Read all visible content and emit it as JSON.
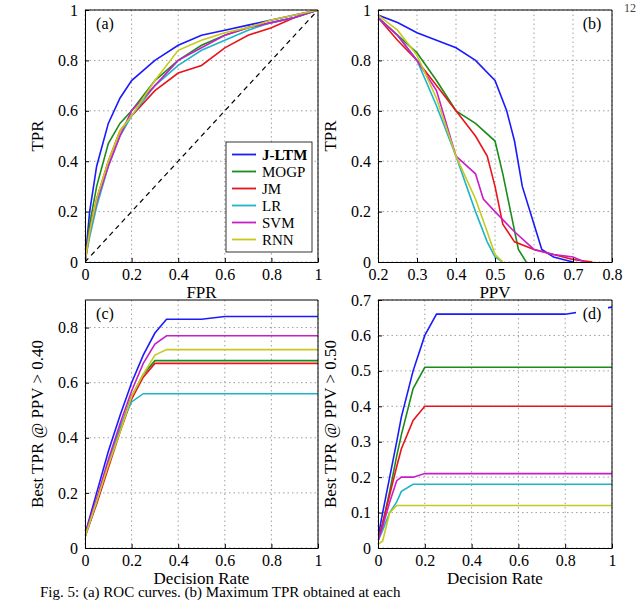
{
  "page_number": "12",
  "caption": "Fig. 5: (a) ROC curves. (b) Maximum TPR obtained at each",
  "chart_data": [
    {
      "type": "line",
      "title": "(a)",
      "x_label": "FPR",
      "y_label": "TPR",
      "xlim": [
        0,
        1
      ],
      "ylim": [
        0,
        1
      ],
      "xticks": [
        0,
        0.2,
        0.4,
        0.6,
        0.8,
        1
      ],
      "yticks": [
        0,
        0.2,
        0.4,
        0.6,
        0.8,
        1
      ],
      "grid": true,
      "legend": "lower right",
      "x": [
        0,
        0.02,
        0.05,
        0.1,
        0.15,
        0.2,
        0.3,
        0.4,
        0.5,
        0.6,
        0.7,
        0.8,
        0.9,
        1
      ],
      "series": [
        {
          "name": "J-LTM",
          "color": "#1a1aff",
          "values": [
            0,
            0.2,
            0.38,
            0.55,
            0.65,
            0.72,
            0.8,
            0.86,
            0.9,
            0.92,
            0.94,
            0.96,
            0.98,
            1
          ]
        },
        {
          "name": "MOGP",
          "color": "#1a8c1a",
          "values": [
            0,
            0.15,
            0.3,
            0.47,
            0.55,
            0.6,
            0.72,
            0.8,
            0.86,
            0.9,
            0.93,
            0.95,
            0.97,
            1
          ]
        },
        {
          "name": "JM",
          "color": "#e8141a",
          "values": [
            0,
            0.12,
            0.25,
            0.4,
            0.52,
            0.58,
            0.68,
            0.75,
            0.78,
            0.85,
            0.9,
            0.93,
            0.97,
            1
          ]
        },
        {
          "name": "LR",
          "color": "#1fb4c8",
          "values": [
            0,
            0.1,
            0.22,
            0.38,
            0.5,
            0.58,
            0.7,
            0.78,
            0.84,
            0.88,
            0.92,
            0.95,
            0.97,
            1
          ]
        },
        {
          "name": "SVM",
          "color": "#c81ec8",
          "values": [
            0,
            0.12,
            0.24,
            0.38,
            0.5,
            0.6,
            0.7,
            0.8,
            0.85,
            0.9,
            0.93,
            0.95,
            0.97,
            1
          ]
        },
        {
          "name": "RNN",
          "color": "#c8c81e",
          "values": [
            0,
            0.12,
            0.25,
            0.4,
            0.52,
            0.58,
            0.72,
            0.84,
            0.88,
            0.91,
            0.93,
            0.96,
            0.98,
            1
          ]
        },
        {
          "color": "#000000",
          "line_style": "dashed",
          "x": [
            0,
            1
          ],
          "values": [
            0,
            1
          ]
        }
      ]
    },
    {
      "type": "line",
      "title": "(b)",
      "x_label": "PPV",
      "y_label": "TPR",
      "xlim": [
        0.2,
        0.8
      ],
      "ylim": [
        0,
        1
      ],
      "xticks": [
        0.2,
        0.3,
        0.4,
        0.5,
        0.6,
        0.7,
        0.8
      ],
      "yticks": [
        0,
        0.2,
        0.4,
        0.6,
        0.8,
        1
      ],
      "grid": true,
      "series": [
        {
          "name": "J-LTM",
          "color": "#1a1aff",
          "x": [
            0.2,
            0.25,
            0.3,
            0.35,
            0.4,
            0.45,
            0.5,
            0.53,
            0.55,
            0.57,
            0.6,
            0.62,
            0.65,
            0.7
          ],
          "values": [
            0.98,
            0.95,
            0.91,
            0.88,
            0.85,
            0.8,
            0.72,
            0.6,
            0.48,
            0.3,
            0.15,
            0.05,
            0.02,
            0
          ]
        },
        {
          "name": "MOGP",
          "color": "#1a8c1a",
          "x": [
            0.2,
            0.25,
            0.3,
            0.35,
            0.4,
            0.45,
            0.5,
            0.52,
            0.54,
            0.56,
            0.58
          ],
          "values": [
            0.97,
            0.9,
            0.83,
            0.72,
            0.6,
            0.55,
            0.48,
            0.35,
            0.2,
            0.05,
            0
          ]
        },
        {
          "name": "JM",
          "color": "#e8141a",
          "x": [
            0.2,
            0.25,
            0.3,
            0.35,
            0.4,
            0.45,
            0.48,
            0.5,
            0.52,
            0.55,
            0.6,
            0.65,
            0.7,
            0.75
          ],
          "values": [
            0.97,
            0.88,
            0.8,
            0.7,
            0.6,
            0.5,
            0.42,
            0.3,
            0.15,
            0.08,
            0.05,
            0.03,
            0.01,
            0
          ]
        },
        {
          "name": "LR",
          "color": "#1fb4c8",
          "x": [
            0.2,
            0.25,
            0.3,
            0.35,
            0.4,
            0.45,
            0.48,
            0.5,
            0.52
          ],
          "values": [
            0.97,
            0.9,
            0.8,
            0.62,
            0.42,
            0.2,
            0.08,
            0.02,
            0
          ]
        },
        {
          "name": "SVM",
          "color": "#c81ec8",
          "x": [
            0.2,
            0.25,
            0.3,
            0.35,
            0.4,
            0.45,
            0.47,
            0.5,
            0.55,
            0.6,
            0.65,
            0.7,
            0.73
          ],
          "values": [
            0.97,
            0.9,
            0.8,
            0.68,
            0.42,
            0.35,
            0.25,
            0.2,
            0.12,
            0.05,
            0.03,
            0.02,
            0
          ]
        },
        {
          "name": "RNN",
          "color": "#c8c81e",
          "x": [
            0.2,
            0.25,
            0.3,
            0.35,
            0.4,
            0.45,
            0.48,
            0.5,
            0.52
          ],
          "values": [
            0.98,
            0.92,
            0.82,
            0.65,
            0.42,
            0.25,
            0.12,
            0.03,
            0
          ]
        }
      ]
    },
    {
      "type": "line",
      "title": "(c)",
      "x_label": "Decision Rate",
      "y_label": "Best TPR @ PPV > 0.40",
      "xlim": [
        0,
        1
      ],
      "ylim": [
        0,
        0.9
      ],
      "xticks": [
        0,
        0.2,
        0.4,
        0.6,
        0.8,
        1
      ],
      "yticks": [
        0,
        0.2,
        0.4,
        0.6,
        0.8
      ],
      "grid": true,
      "x": [
        0,
        0.05,
        0.1,
        0.15,
        0.2,
        0.25,
        0.3,
        0.35,
        0.4,
        0.5,
        0.6,
        0.7,
        0.8,
        0.9,
        1
      ],
      "series": [
        {
          "name": "J-LTM",
          "color": "#1a1aff",
          "values": [
            0.05,
            0.2,
            0.35,
            0.48,
            0.6,
            0.7,
            0.78,
            0.83,
            0.83,
            0.83,
            0.84,
            0.84,
            0.84,
            0.84,
            0.84
          ]
        },
        {
          "name": "MOGP",
          "color": "#1a8c1a",
          "values": [
            0.04,
            0.17,
            0.3,
            0.43,
            0.55,
            0.63,
            0.68,
            0.68,
            0.68,
            0.68,
            0.68,
            0.68,
            0.68,
            0.68,
            0.68
          ]
        },
        {
          "name": "JM",
          "color": "#e8141a",
          "values": [
            0.04,
            0.16,
            0.29,
            0.42,
            0.54,
            0.62,
            0.67,
            0.67,
            0.67,
            0.67,
            0.67,
            0.67,
            0.67,
            0.67,
            0.67
          ]
        },
        {
          "name": "LR",
          "color": "#1fb4c8",
          "values": [
            0.04,
            0.17,
            0.31,
            0.44,
            0.53,
            0.56,
            0.56,
            0.56,
            0.56,
            0.56,
            0.56,
            0.56,
            0.56,
            0.56,
            0.56
          ]
        },
        {
          "name": "SVM",
          "color": "#c81ec8",
          "values": [
            0.05,
            0.18,
            0.32,
            0.45,
            0.57,
            0.67,
            0.74,
            0.77,
            0.77,
            0.77,
            0.77,
            0.77,
            0.77,
            0.77,
            0.77
          ]
        },
        {
          "name": "RNN",
          "color": "#c8c81e",
          "values": [
            0.04,
            0.17,
            0.3,
            0.42,
            0.55,
            0.63,
            0.7,
            0.72,
            0.72,
            0.72,
            0.72,
            0.72,
            0.72,
            0.72,
            0.72
          ]
        }
      ]
    },
    {
      "type": "line",
      "title": "(d)",
      "x_label": "Decision Rate",
      "y_label": "Best TPR @ PPV > 0.50",
      "xlim": [
        0,
        1
      ],
      "ylim": [
        0,
        0.7
      ],
      "xticks": [
        0,
        0.2,
        0.4,
        0.6,
        0.8,
        1
      ],
      "yticks": [
        0,
        0.1,
        0.2,
        0.3,
        0.4,
        0.5,
        0.6,
        0.7
      ],
      "grid": true,
      "x": [
        0,
        0.02,
        0.05,
        0.08,
        0.1,
        0.15,
        0.2,
        0.25,
        0.3,
        0.4,
        0.6,
        0.8,
        0.9,
        1
      ],
      "series": [
        {
          "name": "J-LTM",
          "color": "#1a1aff",
          "values": [
            0.03,
            0.1,
            0.2,
            0.3,
            0.37,
            0.5,
            0.6,
            0.66,
            0.66,
            0.66,
            0.66,
            0.66,
            0.67,
            0.68
          ]
        },
        {
          "name": "MOGP",
          "color": "#1a8c1a",
          "values": [
            0.02,
            0.07,
            0.16,
            0.26,
            0.32,
            0.45,
            0.51,
            0.51,
            0.51,
            0.51,
            0.51,
            0.51,
            0.51,
            0.51
          ]
        },
        {
          "name": "JM",
          "color": "#e8141a",
          "values": [
            0.02,
            0.07,
            0.15,
            0.23,
            0.28,
            0.36,
            0.4,
            0.4,
            0.4,
            0.4,
            0.4,
            0.4,
            0.4,
            0.4
          ]
        },
        {
          "name": "LR",
          "color": "#1fb4c8",
          "values": [
            0.02,
            0.05,
            0.1,
            0.13,
            0.16,
            0.18,
            0.18,
            0.18,
            0.18,
            0.18,
            0.18,
            0.18,
            0.18,
            0.18
          ]
        },
        {
          "name": "SVM",
          "color": "#c81ec8",
          "values": [
            0.02,
            0.06,
            0.13,
            0.19,
            0.2,
            0.2,
            0.21,
            0.21,
            0.21,
            0.21,
            0.21,
            0.21,
            0.21,
            0.21
          ]
        },
        {
          "name": "RNN",
          "color": "#c8c81e",
          "values": [
            0.01,
            0.02,
            0.1,
            0.12,
            0.12,
            0.12,
            0.12,
            0.12,
            0.12,
            0.12,
            0.12,
            0.12,
            0.12,
            0.12
          ]
        }
      ]
    }
  ]
}
